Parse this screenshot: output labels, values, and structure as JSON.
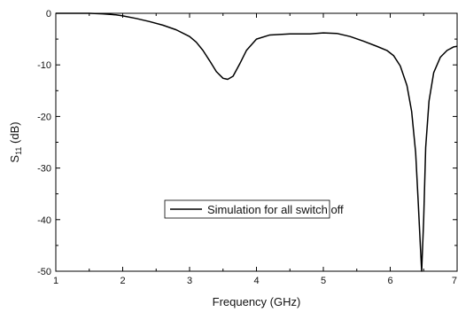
{
  "chart_data": {
    "type": "line",
    "xlabel": "Frequency (GHz)",
    "ylabel_main": "S",
    "ylabel_sub": "11",
    "ylabel_unit": " (dB)",
    "xlim": [
      1,
      7
    ],
    "ylim": [
      -50,
      0
    ],
    "x_ticks": [
      "1",
      "2",
      "3",
      "4",
      "5",
      "6",
      "7"
    ],
    "y_ticks": [
      "0",
      "-10",
      "-20",
      "-30",
      "-40",
      "-50"
    ],
    "grid": false,
    "legend_position": "center-right",
    "series": [
      {
        "name": "Simulation for all switch off",
        "color": "#000000",
        "x": [
          1.0,
          1.3,
          1.5,
          1.7,
          1.9,
          2.0,
          2.2,
          2.4,
          2.6,
          2.8,
          3.0,
          3.1,
          3.2,
          3.3,
          3.4,
          3.5,
          3.57,
          3.65,
          3.75,
          3.85,
          4.0,
          4.2,
          4.5,
          4.8,
          5.0,
          5.2,
          5.4,
          5.6,
          5.8,
          5.95,
          6.05,
          6.15,
          6.25,
          6.32,
          6.38,
          6.42,
          6.45,
          6.47,
          6.5,
          6.53,
          6.58,
          6.65,
          6.75,
          6.85,
          6.95,
          7.0
        ],
        "y": [
          0.0,
          0.0,
          0.0,
          -0.1,
          -0.3,
          -0.5,
          -1.0,
          -1.6,
          -2.3,
          -3.2,
          -4.5,
          -5.6,
          -7.2,
          -9.2,
          -11.3,
          -12.6,
          -12.8,
          -12.2,
          -9.8,
          -7.2,
          -5.0,
          -4.2,
          -4.0,
          -4.0,
          -3.8,
          -3.9,
          -4.5,
          -5.4,
          -6.4,
          -7.2,
          -8.2,
          -10.2,
          -14.0,
          -19.0,
          -27.0,
          -37.0,
          -45.0,
          -50.0,
          -40.0,
          -26.0,
          -17.0,
          -11.5,
          -8.5,
          -7.2,
          -6.5,
          -6.4
        ]
      }
    ]
  }
}
